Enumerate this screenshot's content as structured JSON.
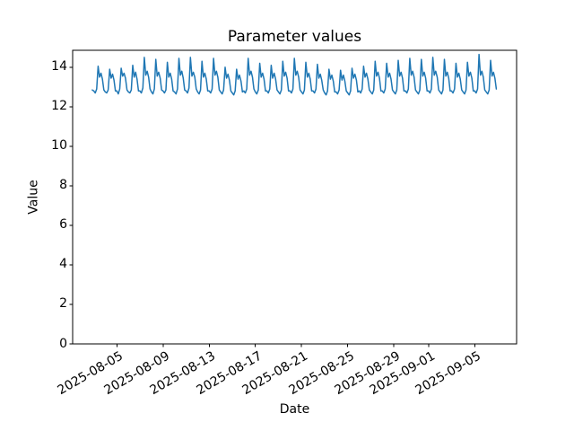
{
  "chart_data": {
    "type": "line",
    "title": "Parameter values",
    "xlabel": "Date",
    "ylabel": "Value",
    "line_color": "#1f77b4",
    "background_color": "#ffffff",
    "grid": false,
    "legend": null,
    "y_ticks": [
      0,
      2,
      4,
      6,
      8,
      10,
      12,
      14
    ],
    "x_ticks": [
      "2025-08-05",
      "2025-08-09",
      "2025-08-13",
      "2025-08-17",
      "2025-08-21",
      "2025-08-25",
      "2025-08-29",
      "2025-09-01",
      "2025-09-05"
    ],
    "x_epoch": "2025-08-01",
    "xlim_days": [
      0.17,
      38.63
    ],
    "ylim": [
      0,
      14.86
    ],
    "sample_times_hours": [
      0,
      3,
      6,
      9,
      12,
      15,
      18,
      21
    ],
    "days": [
      {
        "date": "2025-08-02",
        "values_3h": [
          null,
          null,
          null,
          null,
          null,
          null,
          null,
          12.85
        ]
      },
      {
        "date": "2025-08-03",
        "values_3h": [
          12.8,
          12.7,
          12.9,
          14.05,
          13.5,
          13.7,
          13.4,
          12.85
        ]
      },
      {
        "date": "2025-08-04",
        "values_3h": [
          12.75,
          12.7,
          12.85,
          13.9,
          13.45,
          13.65,
          13.35,
          12.8
        ]
      },
      {
        "date": "2025-08-05",
        "values_3h": [
          12.8,
          12.65,
          12.9,
          13.95,
          13.55,
          13.7,
          13.45,
          12.85
        ]
      },
      {
        "date": "2025-08-06",
        "values_3h": [
          12.75,
          12.7,
          12.85,
          14.1,
          13.5,
          13.75,
          13.4,
          12.8
        ]
      },
      {
        "date": "2025-08-07",
        "values_3h": [
          12.8,
          12.7,
          12.95,
          14.5,
          13.6,
          13.8,
          13.5,
          12.9
        ]
      },
      {
        "date": "2025-08-08",
        "values_3h": [
          12.75,
          12.65,
          12.9,
          14.4,
          13.55,
          13.75,
          13.45,
          12.85
        ]
      },
      {
        "date": "2025-08-09",
        "values_3h": [
          12.8,
          12.7,
          12.85,
          14.25,
          13.5,
          13.7,
          13.4,
          12.8
        ]
      },
      {
        "date": "2025-08-10",
        "values_3h": [
          12.75,
          12.65,
          12.9,
          14.45,
          13.6,
          13.8,
          13.45,
          12.85
        ]
      },
      {
        "date": "2025-08-11",
        "values_3h": [
          12.8,
          12.7,
          12.95,
          14.5,
          13.55,
          13.75,
          13.5,
          12.9
        ]
      },
      {
        "date": "2025-08-12",
        "values_3h": [
          12.75,
          12.65,
          12.85,
          14.3,
          13.5,
          13.7,
          13.4,
          12.8
        ]
      },
      {
        "date": "2025-08-13",
        "values_3h": [
          12.8,
          12.7,
          12.9,
          14.45,
          13.6,
          13.8,
          13.5,
          12.85
        ]
      },
      {
        "date": "2025-08-14",
        "values_3h": [
          12.75,
          12.65,
          12.85,
          14.0,
          13.45,
          13.65,
          13.35,
          12.8
        ]
      },
      {
        "date": "2025-08-15",
        "values_3h": [
          12.7,
          12.6,
          12.8,
          13.9,
          13.4,
          13.6,
          13.3,
          12.75
        ]
      },
      {
        "date": "2025-08-16",
        "values_3h": [
          12.8,
          12.7,
          12.9,
          14.45,
          13.6,
          13.8,
          13.5,
          12.9
        ]
      },
      {
        "date": "2025-08-17",
        "values_3h": [
          12.75,
          12.65,
          12.85,
          14.2,
          13.5,
          13.7,
          13.4,
          12.8
        ]
      },
      {
        "date": "2025-08-18",
        "values_3h": [
          12.8,
          12.7,
          12.9,
          14.1,
          13.45,
          13.7,
          13.4,
          12.85
        ]
      },
      {
        "date": "2025-08-19",
        "values_3h": [
          12.75,
          12.65,
          12.85,
          14.3,
          13.55,
          13.75,
          13.45,
          12.8
        ]
      },
      {
        "date": "2025-08-20",
        "values_3h": [
          12.8,
          12.7,
          12.9,
          14.45,
          13.6,
          13.8,
          13.5,
          12.85
        ]
      },
      {
        "date": "2025-08-21",
        "values_3h": [
          12.75,
          12.65,
          12.85,
          14.25,
          13.5,
          13.7,
          13.4,
          12.8
        ]
      },
      {
        "date": "2025-08-22",
        "values_3h": [
          12.8,
          12.7,
          12.9,
          14.15,
          13.45,
          13.65,
          13.35,
          12.85
        ]
      },
      {
        "date": "2025-08-23",
        "values_3h": [
          12.7,
          12.6,
          12.8,
          13.9,
          13.4,
          13.6,
          13.3,
          12.75
        ]
      },
      {
        "date": "2025-08-24",
        "values_3h": [
          12.75,
          12.65,
          12.85,
          13.85,
          13.35,
          13.6,
          13.3,
          12.8
        ]
      },
      {
        "date": "2025-08-25",
        "values_3h": [
          12.7,
          12.6,
          12.8,
          13.95,
          13.45,
          13.65,
          13.35,
          12.75
        ]
      },
      {
        "date": "2025-08-26",
        "values_3h": [
          12.8,
          12.7,
          12.9,
          14.05,
          13.5,
          13.7,
          13.4,
          12.85
        ]
      },
      {
        "date": "2025-08-27",
        "values_3h": [
          12.75,
          12.65,
          12.85,
          14.3,
          13.55,
          13.75,
          13.45,
          12.8
        ]
      },
      {
        "date": "2025-08-28",
        "values_3h": [
          12.8,
          12.7,
          12.9,
          14.2,
          13.5,
          13.7,
          13.4,
          12.85
        ]
      },
      {
        "date": "2025-08-29",
        "values_3h": [
          12.75,
          12.65,
          12.85,
          14.35,
          13.55,
          13.75,
          13.45,
          12.8
        ]
      },
      {
        "date": "2025-08-30",
        "values_3h": [
          12.8,
          12.7,
          12.9,
          14.45,
          13.6,
          13.8,
          13.5,
          12.85
        ]
      },
      {
        "date": "2025-08-31",
        "values_3h": [
          12.75,
          12.65,
          12.85,
          14.4,
          13.55,
          13.75,
          13.45,
          12.8
        ]
      },
      {
        "date": "2025-09-01",
        "values_3h": [
          12.8,
          12.7,
          12.9,
          14.5,
          13.6,
          13.8,
          13.5,
          12.85
        ]
      },
      {
        "date": "2025-09-02",
        "values_3h": [
          12.75,
          12.65,
          12.85,
          14.4,
          13.55,
          13.75,
          13.45,
          12.8
        ]
      },
      {
        "date": "2025-09-03",
        "values_3h": [
          12.8,
          12.7,
          12.9,
          14.2,
          13.5,
          13.7,
          13.4,
          12.85
        ]
      },
      {
        "date": "2025-09-04",
        "values_3h": [
          12.75,
          12.65,
          12.85,
          14.25,
          13.55,
          13.75,
          13.45,
          12.8
        ]
      },
      {
        "date": "2025-09-05",
        "values_3h": [
          12.8,
          12.7,
          12.9,
          14.65,
          13.6,
          13.8,
          13.5,
          12.85
        ]
      },
      {
        "date": "2025-09-06",
        "values_3h": [
          12.75,
          12.65,
          12.85,
          14.35,
          13.55,
          13.75,
          13.45,
          12.9
        ]
      }
    ]
  }
}
